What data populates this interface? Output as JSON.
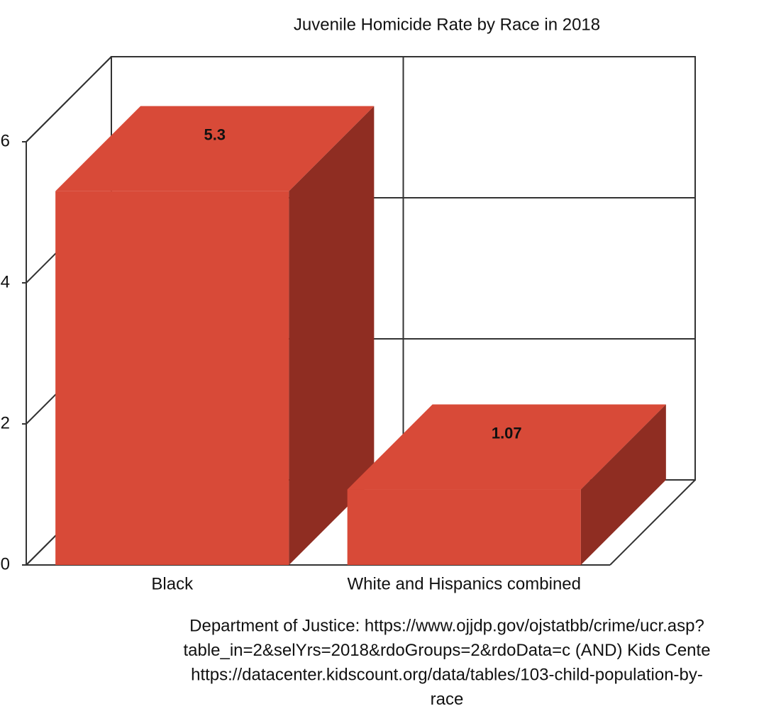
{
  "chart_data": {
    "type": "bar3d",
    "title": "Juvenile Homicide Rate by Race in 2018",
    "categories": [
      "Black",
      "White and Hispanics combined"
    ],
    "values": [
      5.3,
      1.07
    ],
    "color": "#d84a38",
    "side_color": "#8f2d22",
    "ylim": [
      0,
      6
    ],
    "yticks": [
      0,
      2,
      4,
      6
    ],
    "grid": true,
    "source": [
      "Department of Justice: https://www.ojjdp.gov/ojstatbb/crime/ucr.asp?",
      "table_in=2&selYrs=2018&rdoGroups=2&rdoData=c (AND) Kids Cente",
      "https://datacenter.kidscount.org/data/tables/103-child-population-by-",
      "race"
    ]
  }
}
